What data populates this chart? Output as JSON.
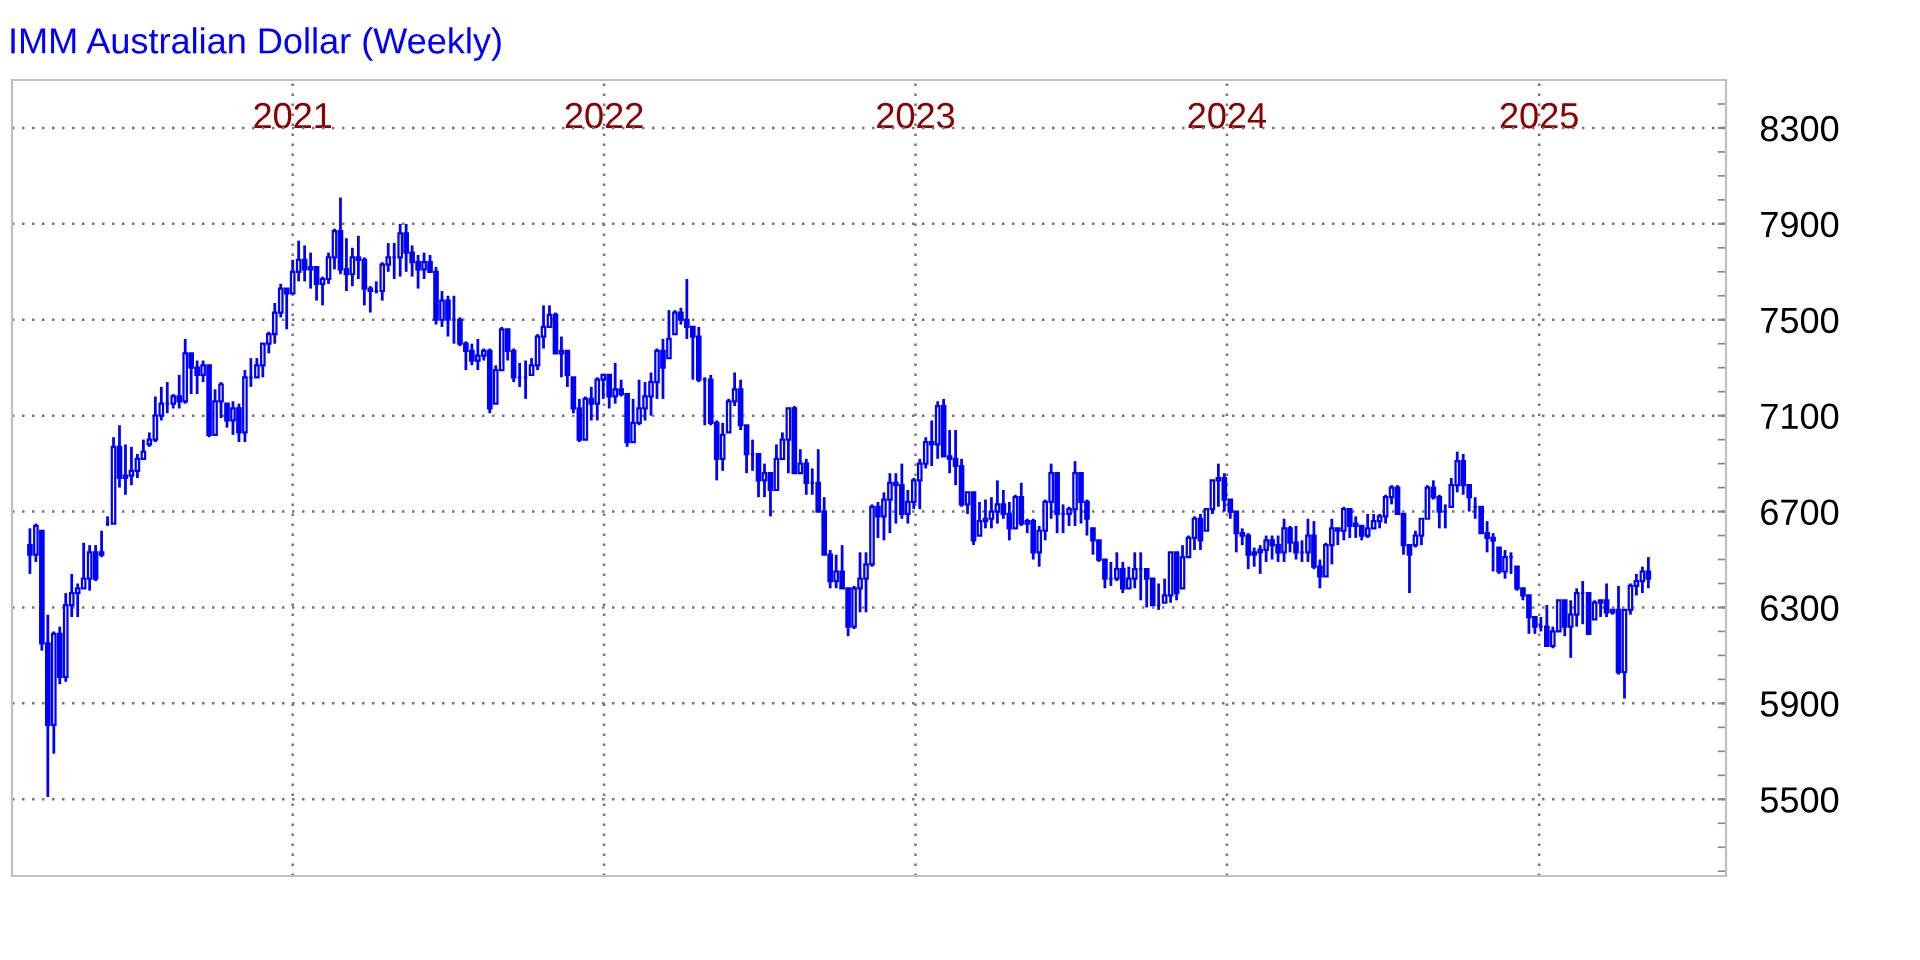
{
  "chart_data": {
    "type": "candlestick",
    "title": "IMM Australian Dollar (Weekly)",
    "color": "#0000ff",
    "x": [
      "2020-02-28",
      "2020-03-06",
      "2020-03-13",
      "2020-03-20",
      "2020-03-27",
      "2020-04-03",
      "2020-04-10",
      "2020-04-17",
      "2020-04-24",
      "2020-05-01",
      "2020-05-08",
      "2020-05-15",
      "2020-05-22",
      "2020-05-29",
      "2020-06-05",
      "2020-06-12",
      "2020-06-19",
      "2020-06-26",
      "2020-07-03",
      "2020-07-10",
      "2020-07-17",
      "2020-07-24",
      "2020-07-31",
      "2020-08-07",
      "2020-08-14",
      "2020-08-21",
      "2020-08-28",
      "2020-09-04",
      "2020-09-11",
      "2020-09-18",
      "2020-09-25",
      "2020-10-02",
      "2020-10-09",
      "2020-10-16",
      "2020-10-23",
      "2020-10-30",
      "2020-11-06",
      "2020-11-13",
      "2020-11-20",
      "2020-11-27",
      "2020-12-04",
      "2020-12-11",
      "2020-12-18",
      "2020-12-25",
      "2021-01-01",
      "2021-01-08",
      "2021-01-15",
      "2021-01-22",
      "2021-01-29",
      "2021-02-05",
      "2021-02-12",
      "2021-02-19",
      "2021-02-26",
      "2021-03-05",
      "2021-03-12",
      "2021-03-19",
      "2021-03-26",
      "2021-04-02",
      "2021-04-09",
      "2021-04-16",
      "2021-04-23",
      "2021-04-30",
      "2021-05-07",
      "2021-05-14",
      "2021-05-21",
      "2021-05-28",
      "2021-06-04",
      "2021-06-11",
      "2021-06-18",
      "2021-06-25",
      "2021-07-02",
      "2021-07-09",
      "2021-07-16",
      "2021-07-23",
      "2021-07-30",
      "2021-08-06",
      "2021-08-13",
      "2021-08-20",
      "2021-08-27",
      "2021-09-03",
      "2021-09-10",
      "2021-09-17",
      "2021-09-24",
      "2021-10-01",
      "2021-10-08",
      "2021-10-15",
      "2021-10-22",
      "2021-10-29",
      "2021-11-05",
      "2021-11-12",
      "2021-11-19",
      "2021-11-26",
      "2021-12-03",
      "2021-12-10",
      "2021-12-17",
      "2021-12-24",
      "2021-12-31",
      "2022-01-07",
      "2022-01-14",
      "2022-01-21",
      "2022-01-28",
      "2022-02-04",
      "2022-02-11",
      "2022-02-18",
      "2022-02-25",
      "2022-03-04",
      "2022-03-11",
      "2022-03-18",
      "2022-03-25",
      "2022-04-01",
      "2022-04-08",
      "2022-04-15",
      "2022-04-22",
      "2022-04-29",
      "2022-05-06",
      "2022-05-13",
      "2022-05-20",
      "2022-05-27",
      "2022-06-03",
      "2022-06-10",
      "2022-06-17",
      "2022-06-24",
      "2022-07-01",
      "2022-07-08",
      "2022-07-15",
      "2022-07-22",
      "2022-07-29",
      "2022-08-05",
      "2022-08-12",
      "2022-08-19",
      "2022-08-26",
      "2022-09-02",
      "2022-09-09",
      "2022-09-16",
      "2022-09-23",
      "2022-09-30",
      "2022-10-07",
      "2022-10-14",
      "2022-10-21",
      "2022-10-28",
      "2022-11-04",
      "2022-11-11",
      "2022-11-18",
      "2022-11-25",
      "2022-12-02",
      "2022-12-09",
      "2022-12-16",
      "2022-12-23",
      "2022-12-30",
      "2023-01-06",
      "2023-01-13",
      "2023-01-20",
      "2023-01-27",
      "2023-02-03",
      "2023-02-10",
      "2023-02-17",
      "2023-02-24",
      "2023-03-03",
      "2023-03-10",
      "2023-03-17",
      "2023-03-24",
      "2023-03-31",
      "2023-04-07",
      "2023-04-14",
      "2023-04-21",
      "2023-04-28",
      "2023-05-05",
      "2023-05-12",
      "2023-05-19",
      "2023-05-26",
      "2023-06-02",
      "2023-06-09",
      "2023-06-16",
      "2023-06-23",
      "2023-06-30",
      "2023-07-07",
      "2023-07-14",
      "2023-07-21",
      "2023-07-28",
      "2023-08-04",
      "2023-08-11",
      "2023-08-18",
      "2023-08-25",
      "2023-09-01",
      "2023-09-08",
      "2023-09-15",
      "2023-09-22",
      "2023-09-29",
      "2023-10-06",
      "2023-10-13",
      "2023-10-20",
      "2023-10-27",
      "2023-11-03",
      "2023-11-10",
      "2023-11-17",
      "2023-11-24",
      "2023-12-01",
      "2023-12-08",
      "2023-12-15",
      "2023-12-22",
      "2023-12-29",
      "2024-01-05",
      "2024-01-12",
      "2024-01-19",
      "2024-01-26",
      "2024-02-02",
      "2024-02-09",
      "2024-02-16",
      "2024-02-23",
      "2024-03-01",
      "2024-03-08",
      "2024-03-15",
      "2024-03-22",
      "2024-03-29",
      "2024-04-05",
      "2024-04-12",
      "2024-04-19",
      "2024-04-26",
      "2024-05-03",
      "2024-05-10",
      "2024-05-17",
      "2024-05-24",
      "2024-05-31",
      "2024-06-07",
      "2024-06-14",
      "2024-06-21",
      "2024-06-28",
      "2024-07-05",
      "2024-07-12",
      "2024-07-19",
      "2024-07-26",
      "2024-08-02",
      "2024-08-09",
      "2024-08-16",
      "2024-08-23",
      "2024-08-30",
      "2024-09-06",
      "2024-09-13",
      "2024-09-20",
      "2024-09-27",
      "2024-10-04",
      "2024-10-11",
      "2024-10-18",
      "2024-10-25",
      "2024-11-01",
      "2024-11-08",
      "2024-11-15",
      "2024-11-22",
      "2024-11-29",
      "2024-12-06",
      "2024-12-13",
      "2024-12-20",
      "2024-12-27",
      "2025-01-03",
      "2025-01-10",
      "2025-01-17",
      "2025-01-24",
      "2025-01-31",
      "2025-02-07",
      "2025-02-14",
      "2025-02-21",
      "2025-02-28",
      "2025-03-07",
      "2025-03-14",
      "2025-03-21",
      "2025-03-28",
      "2025-04-04",
      "2025-04-11",
      "2025-04-18",
      "2025-04-25",
      "2025-05-02",
      "2025-05-09"
    ],
    "ohlc": [
      [
        6560,
        6630,
        6440,
        6520
      ],
      [
        6520,
        6650,
        6490,
        6640
      ],
      [
        6620,
        6620,
        6120,
        6150
      ],
      [
        6150,
        6270,
        5510,
        5810
      ],
      [
        5810,
        6200,
        5690,
        6190
      ],
      [
        6190,
        6220,
        5980,
        6010
      ],
      [
        6010,
        6360,
        5990,
        6310
      ],
      [
        6310,
        6440,
        6260,
        6360
      ],
      [
        6360,
        6400,
        6260,
        6380
      ],
      [
        6380,
        6570,
        6380,
        6420
      ],
      [
        6420,
        6560,
        6370,
        6530
      ],
      [
        6530,
        6560,
        6410,
        6420
      ],
      [
        6520,
        6620,
        6510,
        6530
      ],
      [
        6650,
        6680,
        6640,
        6650
      ],
      [
        6650,
        7010,
        6650,
        6970
      ],
      [
        6970,
        7060,
        6800,
        6840
      ],
      [
        6840,
        6980,
        6770,
        6850
      ],
      [
        6850,
        6970,
        6810,
        6870
      ],
      [
        6870,
        6940,
        6840,
        6920
      ],
      [
        6920,
        7000,
        6920,
        6950
      ],
      [
        6980,
        7030,
        6970,
        7000
      ],
      [
        7000,
        7180,
        6990,
        7100
      ],
      [
        7100,
        7220,
        7080,
        7150
      ],
      [
        7150,
        7240,
        7110,
        7150
      ],
      [
        7150,
        7190,
        7130,
        7180
      ],
      [
        7180,
        7270,
        7130,
        7160
      ],
      [
        7160,
        7420,
        7150,
        7360
      ],
      [
        7360,
        7360,
        7190,
        7300
      ],
      [
        7300,
        7330,
        7190,
        7270
      ],
      [
        7270,
        7330,
        7240,
        7310
      ],
      [
        7310,
        7310,
        7010,
        7020
      ],
      [
        7020,
        7210,
        7020,
        7160
      ],
      [
        7160,
        7240,
        7090,
        7230
      ],
      [
        7150,
        7150,
        7050,
        7080
      ],
      [
        7080,
        7160,
        7020,
        7130
      ],
      [
        7130,
        7150,
        6990,
        7030
      ],
      [
        7030,
        7290,
        6990,
        7260
      ],
      [
        7260,
        7340,
        7220,
        7260
      ],
      [
        7260,
        7340,
        7260,
        7310
      ],
      [
        7310,
        7400,
        7260,
        7400
      ],
      [
        7400,
        7450,
        7360,
        7440
      ],
      [
        7440,
        7570,
        7400,
        7530
      ],
      [
        7530,
        7650,
        7510,
        7630
      ],
      [
        7630,
        7630,
        7460,
        7610
      ],
      [
        7610,
        7750,
        7610,
        7700
      ],
      [
        7700,
        7830,
        7660,
        7750
      ],
      [
        7750,
        7810,
        7660,
        7710
      ],
      [
        7710,
        7780,
        7630,
        7720
      ],
      [
        7720,
        7720,
        7580,
        7650
      ],
      [
        7650,
        7680,
        7560,
        7670
      ],
      [
        7670,
        7780,
        7650,
        7760
      ],
      [
        7760,
        7880,
        7710,
        7870
      ],
      [
        7870,
        8010,
        7690,
        7710
      ],
      [
        7710,
        7840,
        7620,
        7690
      ],
      [
        7690,
        7800,
        7640,
        7760
      ],
      [
        7760,
        7850,
        7670,
        7750
      ],
      [
        7750,
        7760,
        7560,
        7630
      ],
      [
        7630,
        7640,
        7530,
        7620
      ],
      [
        7620,
        7660,
        7610,
        7620
      ],
      [
        7620,
        7740,
        7580,
        7730
      ],
      [
        7730,
        7820,
        7700,
        7760
      ],
      [
        7760,
        7820,
        7670,
        7760
      ],
      [
        7760,
        7900,
        7680,
        7860
      ],
      [
        7860,
        7900,
        7700,
        7780
      ],
      [
        7780,
        7810,
        7680,
        7740
      ],
      [
        7740,
        7770,
        7630,
        7710
      ],
      [
        7710,
        7780,
        7670,
        7740
      ],
      [
        7740,
        7770,
        7700,
        7700
      ],
      [
        7700,
        7720,
        7480,
        7500
      ],
      [
        7500,
        7620,
        7470,
        7580
      ],
      [
        7580,
        7600,
        7430,
        7500
      ],
      [
        7500,
        7600,
        7400,
        7500
      ],
      [
        7500,
        7510,
        7390,
        7400
      ],
      [
        7400,
        7410,
        7290,
        7370
      ],
      [
        7370,
        7400,
        7310,
        7330
      ],
      [
        7330,
        7420,
        7290,
        7350
      ],
      [
        7350,
        7380,
        7330,
        7370
      ],
      [
        7370,
        7380,
        7110,
        7130
      ],
      [
        7150,
        7310,
        7150,
        7290
      ],
      [
        7290,
        7470,
        7290,
        7460
      ],
      [
        7460,
        7460,
        7330,
        7370
      ],
      [
        7370,
        7380,
        7240,
        7260
      ],
      [
        7260,
        7320,
        7220,
        7260
      ],
      [
        7260,
        7330,
        7170,
        7260
      ],
      [
        7270,
        7340,
        7270,
        7310
      ],
      [
        7310,
        7440,
        7290,
        7430
      ],
      [
        7430,
        7560,
        7380,
        7470
      ],
      [
        7470,
        7560,
        7470,
        7520
      ],
      [
        7520,
        7530,
        7360,
        7360
      ],
      [
        7360,
        7430,
        7260,
        7370
      ],
      [
        7370,
        7370,
        7220,
        7270
      ],
      [
        7260,
        7260,
        7110,
        7130
      ],
      [
        7130,
        7170,
        6990,
        7000
      ],
      [
        7000,
        7180,
        7000,
        7170
      ],
      [
        7170,
        7220,
        7080,
        7150
      ],
      [
        7150,
        7260,
        7080,
        7250
      ],
      [
        7250,
        7270,
        7170,
        7270
      ],
      [
        7270,
        7270,
        7130,
        7180
      ],
      [
        7180,
        7320,
        7150,
        7210
      ],
      [
        7210,
        7250,
        7180,
        7190
      ],
      [
        7190,
        7190,
        6970,
        6990
      ],
      [
        6990,
        7170,
        6990,
        7070
      ],
      [
        7070,
        7250,
        7060,
        7130
      ],
      [
        7130,
        7240,
        7080,
        7180
      ],
      [
        7180,
        7280,
        7100,
        7240
      ],
      [
        7240,
        7380,
        7170,
        7370
      ],
      [
        7370,
        7420,
        7170,
        7300
      ],
      [
        7340,
        7540,
        7340,
        7420
      ],
      [
        7440,
        7540,
        7440,
        7530
      ],
      [
        7530,
        7550,
        7480,
        7500
      ],
      [
        7500,
        7670,
        7420,
        7470
      ],
      [
        7470,
        7470,
        7250,
        7430
      ],
      [
        7430,
        7470,
        7240,
        7250
      ],
      [
        7250,
        7260,
        7060,
        7250
      ],
      [
        7250,
        7270,
        7060,
        7070
      ],
      [
        7070,
        7080,
        6830,
        6920
      ],
      [
        6920,
        7070,
        6870,
        7020
      ],
      [
        7030,
        7170,
        7030,
        7160
      ],
      [
        7160,
        7280,
        7140,
        7210
      ],
      [
        7210,
        7250,
        7040,
        7060
      ],
      [
        7060,
        7060,
        6860,
        6940
      ],
      [
        6940,
        7000,
        6870,
        6940
      ],
      [
        6940,
        6940,
        6760,
        6830
      ],
      [
        6830,
        6900,
        6760,
        6860
      ],
      [
        6860,
        6860,
        6680,
        6790
      ],
      [
        6790,
        6980,
        6790,
        6920
      ],
      [
        6920,
        7030,
        6920,
        7000
      ],
      [
        7000,
        7130,
        6860,
        7130
      ],
      [
        7130,
        7140,
        6860,
        6860
      ],
      [
        6860,
        6960,
        6860,
        6900
      ],
      [
        6900,
        6920,
        6770,
        6820
      ],
      [
        6820,
        6880,
        6770,
        6820
      ],
      [
        6820,
        6960,
        6700,
        6700
      ],
      [
        6700,
        6760,
        6520,
        6520
      ],
      [
        6520,
        6540,
        6380,
        6410
      ],
      [
        6410,
        6520,
        6380,
        6450
      ],
      [
        6450,
        6560,
        6380,
        6380
      ],
      [
        6380,
        6380,
        6180,
        6220
      ],
      [
        6220,
        6390,
        6210,
        6380
      ],
      [
        6380,
        6530,
        6280,
        6420
      ],
      [
        6420,
        6530,
        6280,
        6480
      ],
      [
        6480,
        6730,
        6470,
        6720
      ],
      [
        6720,
        6740,
        6590,
        6680
      ],
      [
        6680,
        6780,
        6580,
        6750
      ],
      [
        6750,
        6860,
        6610,
        6820
      ],
      [
        6820,
        6860,
        6650,
        6810
      ],
      [
        6810,
        6900,
        6670,
        6690
      ],
      [
        6690,
        6790,
        6650,
        6740
      ],
      [
        6740,
        6840,
        6710,
        6830
      ],
      [
        6830,
        6920,
        6710,
        6900
      ],
      [
        6900,
        7010,
        6880,
        6990
      ],
      [
        6990,
        7080,
        6890,
        6980
      ],
      [
        6980,
        7160,
        6920,
        7140
      ],
      [
        7140,
        7170,
        6930,
        6930
      ],
      [
        6930,
        7040,
        6860,
        6920
      ],
      [
        6920,
        7040,
        6810,
        6890
      ],
      [
        6890,
        6920,
        6720,
        6730
      ],
      [
        6730,
        6780,
        6690,
        6780
      ],
      [
        6780,
        6780,
        6560,
        6580
      ],
      [
        6600,
        6740,
        6600,
        6660
      ],
      [
        6660,
        6750,
        6630,
        6670
      ],
      [
        6670,
        6760,
        6630,
        6700
      ],
      [
        6700,
        6830,
        6650,
        6730
      ],
      [
        6730,
        6790,
        6670,
        6690
      ],
      [
        6690,
        6740,
        6580,
        6630
      ],
      [
        6630,
        6770,
        6630,
        6760
      ],
      [
        6760,
        6820,
        6640,
        6650
      ],
      [
        6650,
        6670,
        6610,
        6660
      ],
      [
        6660,
        6670,
        6500,
        6530
      ],
      [
        6530,
        6640,
        6470,
        6620
      ],
      [
        6620,
        6750,
        6580,
        6740
      ],
      [
        6740,
        6900,
        6670,
        6860
      ],
      [
        6860,
        6860,
        6610,
        6690
      ],
      [
        6690,
        6730,
        6610,
        6690
      ],
      [
        6690,
        6720,
        6640,
        6710
      ],
      [
        6710,
        6910,
        6640,
        6860
      ],
      [
        6860,
        6860,
        6650,
        6740
      ],
      [
        6740,
        6750,
        6600,
        6670
      ],
      [
        6630,
        6630,
        6520,
        6580
      ],
      [
        6580,
        6580,
        6490,
        6500
      ],
      [
        6500,
        6500,
        6380,
        6420
      ],
      [
        6420,
        6490,
        6390,
        6420
      ],
      [
        6420,
        6530,
        6410,
        6460
      ],
      [
        6460,
        6490,
        6360,
        6380
      ],
      [
        6380,
        6470,
        6380,
        6420
      ],
      [
        6420,
        6530,
        6380,
        6460
      ],
      [
        6460,
        6530,
        6330,
        6460
      ],
      [
        6460,
        6460,
        6300,
        6420
      ],
      [
        6420,
        6420,
        6310,
        6310
      ],
      [
        6310,
        6400,
        6290,
        6310
      ],
      [
        6320,
        6420,
        6320,
        6350
      ],
      [
        6350,
        6530,
        6320,
        6530
      ],
      [
        6530,
        6530,
        6330,
        6360
      ],
      [
        6380,
        6560,
        6380,
        6510
      ],
      [
        6510,
        6600,
        6510,
        6590
      ],
      [
        6590,
        6680,
        6540,
        6670
      ],
      [
        6670,
        6690,
        6540,
        6580
      ],
      [
        6620,
        6710,
        6620,
        6710
      ],
      [
        6710,
        6830,
        6690,
        6830
      ],
      [
        6830,
        6900,
        6720,
        6840
      ],
      [
        6840,
        6860,
        6700,
        6750
      ],
      [
        6750,
        6750,
        6670,
        6700
      ],
      [
        6700,
        6700,
        6530,
        6610
      ],
      [
        6610,
        6630,
        6560,
        6600
      ],
      [
        6600,
        6610,
        6460,
        6520
      ],
      [
        6520,
        6550,
        6470,
        6530
      ],
      [
        6530,
        6560,
        6440,
        6540
      ],
      [
        6540,
        6600,
        6490,
        6580
      ],
      [
        6580,
        6600,
        6500,
        6560
      ],
      [
        6560,
        6600,
        6490,
        6530
      ],
      [
        6530,
        6670,
        6490,
        6630
      ],
      [
        6630,
        6640,
        6530,
        6570
      ],
      [
        6570,
        6640,
        6500,
        6530
      ],
      [
        6530,
        6580,
        6490,
        6530
      ],
      [
        6530,
        6670,
        6490,
        6600
      ],
      [
        6600,
        6660,
        6460,
        6470
      ],
      [
        6470,
        6500,
        6380,
        6430
      ],
      [
        6430,
        6570,
        6430,
        6560
      ],
      [
        6560,
        6670,
        6480,
        6630
      ],
      [
        6630,
        6630,
        6560,
        6620
      ],
      [
        6620,
        6720,
        6580,
        6710
      ],
      [
        6710,
        6710,
        6590,
        6640
      ],
      [
        6640,
        6680,
        6590,
        6650
      ],
      [
        6640,
        6640,
        6580,
        6600
      ],
      [
        6600,
        6690,
        6590,
        6630
      ],
      [
        6630,
        6690,
        6630,
        6660
      ],
      [
        6660,
        6690,
        6630,
        6680
      ],
      [
        6680,
        6770,
        6650,
        6760
      ],
      [
        6760,
        6810,
        6730,
        6800
      ],
      [
        6800,
        6810,
        6690,
        6690
      ],
      [
        6690,
        6690,
        6520,
        6560
      ],
      [
        6560,
        6560,
        6360,
        6520
      ],
      [
        6560,
        6620,
        6550,
        6600
      ],
      [
        6600,
        6670,
        6560,
        6670
      ],
      [
        6670,
        6810,
        6670,
        6800
      ],
      [
        6800,
        6830,
        6750,
        6760
      ],
      [
        6760,
        6770,
        6630,
        6700
      ],
      [
        6700,
        6730,
        6630,
        6700
      ],
      [
        6720,
        6840,
        6720,
        6810
      ],
      [
        6810,
        6950,
        6780,
        6910
      ],
      [
        6910,
        6940,
        6770,
        6810
      ],
      [
        6810,
        6810,
        6700,
        6760
      ],
      [
        6720,
        6760,
        6670,
        6720
      ],
      [
        6720,
        6720,
        6610,
        6610
      ],
      [
        6610,
        6660,
        6530,
        6590
      ],
      [
        6590,
        6610,
        6450,
        6580
      ],
      [
        6550,
        6550,
        6440,
        6450
      ],
      [
        6450,
        6540,
        6420,
        6510
      ],
      [
        6510,
        6530,
        6440,
        6510
      ],
      [
        6470,
        6470,
        6370,
        6380
      ],
      [
        6380,
        6380,
        6330,
        6350
      ],
      [
        6350,
        6350,
        6190,
        6260
      ],
      [
        6260,
        6260,
        6190,
        6220
      ],
      [
        6220,
        6260,
        6200,
        6220
      ],
      [
        6220,
        6310,
        6140,
        6140
      ],
      [
        6140,
        6220,
        6130,
        6200
      ],
      [
        6200,
        6330,
        6200,
        6330
      ],
      [
        6330,
        6330,
        6180,
        6220
      ],
      [
        6220,
        6330,
        6090,
        6270
      ],
      [
        6270,
        6380,
        6220,
        6360
      ],
      [
        6360,
        6410,
        6230,
        6360
      ],
      [
        6360,
        6360,
        6190,
        6190
      ],
      [
        6250,
        6330,
        6250,
        6320
      ],
      [
        6320,
        6330,
        6260,
        6330
      ],
      [
        6330,
        6400,
        6260,
        6280
      ],
      [
        6280,
        6290,
        6270,
        6290
      ],
      [
        6290,
        6390,
        6020,
        6030
      ],
      [
        6030,
        6290,
        5920,
        6290
      ],
      [
        6290,
        6400,
        6270,
        6390
      ],
      [
        6390,
        6440,
        6350,
        6410
      ],
      [
        6410,
        6470,
        6360,
        6450
      ],
      [
        6450,
        6510,
        6380,
        6420
      ]
    ],
    "xlim": [
      "2020-02-07",
      "2025-08-08"
    ],
    "xticks": [
      {
        "value": "2021-01-01",
        "label": "2021"
      },
      {
        "value": "2022-01-01",
        "label": "2022"
      },
      {
        "value": "2023-01-01",
        "label": "2023"
      },
      {
        "value": "2024-01-01",
        "label": "2024"
      },
      {
        "value": "2025-01-01",
        "label": "2025"
      }
    ],
    "ylim": [
      5180,
      8500
    ],
    "yticks": [
      5500,
      5900,
      6300,
      6700,
      7100,
      7500,
      7900,
      8300
    ],
    "grid": true
  }
}
